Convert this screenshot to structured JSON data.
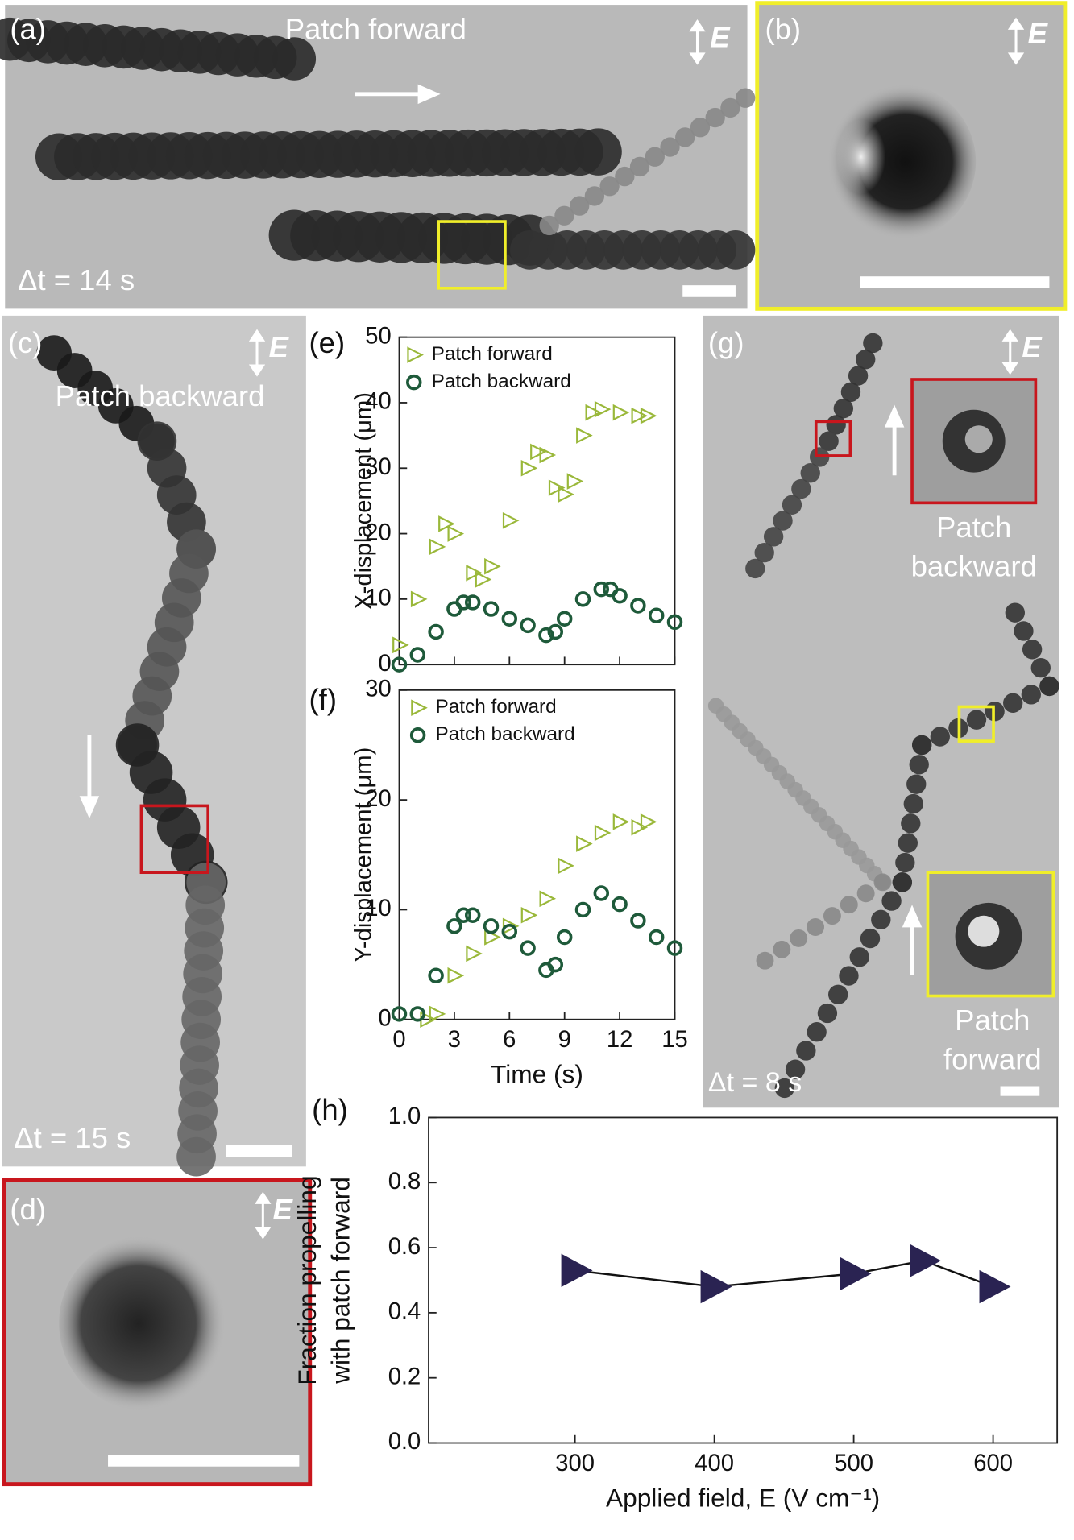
{
  "panels": {
    "a": {
      "label": "(a)",
      "caption": "Patch forward",
      "field": "E",
      "time": "Δt = 14 s"
    },
    "b": {
      "label": "(b)",
      "field": "E"
    },
    "c": {
      "label": "(c)",
      "caption": "Patch backward",
      "field": "E",
      "time": "Δt = 15 s"
    },
    "d": {
      "label": "(d)",
      "field": "E"
    },
    "g": {
      "label": "(g)",
      "field": "E",
      "inset_top": [
        "Patch",
        "backward"
      ],
      "inset_bottom": [
        "Patch",
        "forward"
      ],
      "time": "Δt = 8 s"
    }
  },
  "chart_data": [
    {
      "type": "scatter",
      "label": "(e)",
      "ylabel": "X-displacement (μm)",
      "xlim": [
        0,
        15
      ],
      "xticks": [
        0,
        3,
        6,
        9,
        12,
        15
      ],
      "ylim": [
        0,
        50
      ],
      "yticks": [
        0,
        10,
        20,
        30,
        40,
        50
      ],
      "series": [
        {
          "name": "Patch forward",
          "color": "#9ab83a",
          "marker": "triangle",
          "x": [
            0,
            1,
            2,
            2.5,
            3,
            4,
            4.5,
            5,
            6,
            7,
            7.5,
            8,
            8.5,
            9,
            9.5,
            10,
            10.5,
            11,
            12,
            13,
            13.5
          ],
          "values": [
            3,
            10,
            18,
            21.5,
            20,
            14,
            13,
            15,
            22,
            30,
            32.5,
            32,
            27,
            26,
            28,
            35,
            38.5,
            39,
            38.5,
            38,
            38
          ]
        },
        {
          "name": "Patch backward",
          "color": "#1e5a3a",
          "marker": "circle",
          "x": [
            0,
            1,
            2,
            3,
            3.5,
            4,
            5,
            6,
            7,
            8,
            8.5,
            9,
            10,
            11,
            11.5,
            12,
            13,
            14,
            15
          ],
          "values": [
            0,
            1.5,
            5,
            8.5,
            9.5,
            9.5,
            8.5,
            7,
            6,
            4.5,
            5,
            7,
            10,
            11.5,
            11.5,
            10.5,
            9,
            7.5,
            6.5
          ]
        }
      ]
    },
    {
      "type": "scatter",
      "label": "(f)",
      "xlabel": "Time (s)",
      "ylabel": "Y-displacement (μm)",
      "xlim": [
        0,
        15
      ],
      "xticks": [
        0,
        3,
        6,
        9,
        12,
        15
      ],
      "ylim": [
        0,
        30
      ],
      "yticks": [
        0,
        10,
        20,
        30
      ],
      "series": [
        {
          "name": "Patch forward",
          "color": "#9ab83a",
          "marker": "triangle",
          "x": [
            1.5,
            2,
            3,
            4,
            5,
            6,
            7,
            8,
            9,
            10,
            11,
            12,
            13,
            13.5
          ],
          "values": [
            0,
            0.5,
            4,
            6,
            7.5,
            8.5,
            9.5,
            11,
            14,
            16,
            17,
            18,
            17.5,
            18
          ]
        },
        {
          "name": "Patch backward",
          "color": "#1e5a3a",
          "marker": "circle",
          "x": [
            0,
            1,
            2,
            3,
            3.5,
            4,
            5,
            6,
            7,
            8,
            8.5,
            9,
            10,
            11,
            12,
            13,
            14,
            15
          ],
          "values": [
            0.5,
            0.5,
            4,
            8.5,
            9.5,
            9.5,
            8.5,
            8,
            6.5,
            4.5,
            5,
            7.5,
            10,
            11.5,
            10.5,
            9,
            7.5,
            6.5
          ]
        }
      ]
    },
    {
      "type": "line",
      "label": "(h)",
      "xlabel": "Applied field, E (V cm⁻¹)",
      "ylabel": [
        "Fraction propelling",
        "with patch forward"
      ],
      "color": "#2a2352",
      "x": [
        300,
        400,
        500,
        550,
        600
      ],
      "values": [
        0.53,
        0.48,
        0.52,
        0.56,
        0.48
      ],
      "xlim": [
        195,
        646
      ],
      "xticks": [
        300,
        400,
        500,
        600
      ],
      "ylim": [
        0,
        1
      ],
      "yticks": [
        {
          "value": 0,
          "label": "0.0"
        },
        0.2,
        0.4,
        0.6,
        0.8,
        {
          "value": 1,
          "label": "1.0"
        }
      ]
    }
  ]
}
